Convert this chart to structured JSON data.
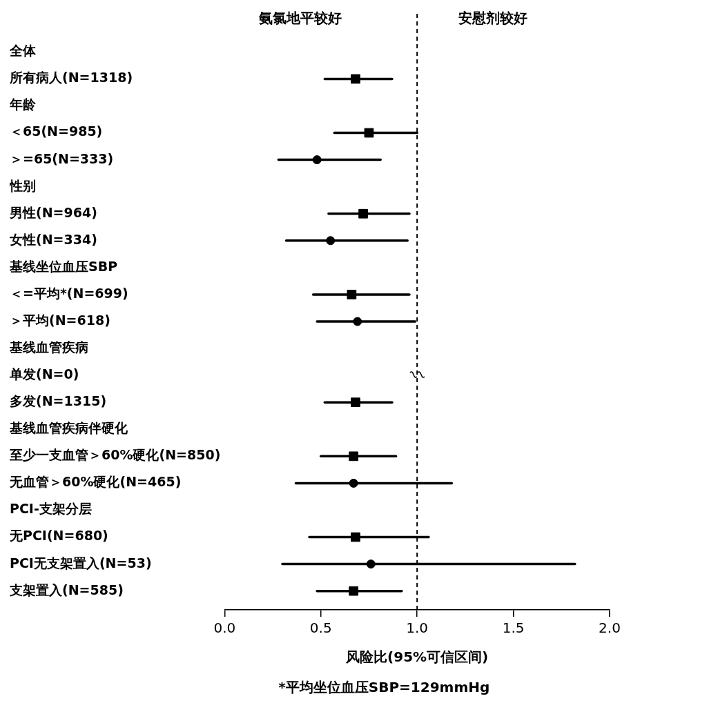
{
  "chart_data": {
    "type": "scatter",
    "orientation": "horizontal",
    "categories": [
      "全体",
      "所有病人(N=1318)",
      "年龄",
      "＜65(N=985)",
      "＞=65(N=333)",
      "性别",
      "男性(N=964)",
      "女性(N=334)",
      "基线坐位血压SBP",
      "＜=平均*(N=699)",
      "＞平均(N=618)",
      "基线血管疾病",
      "单发(N=0)",
      "多发(N=1315)",
      "基线血管疾病伴硬化",
      "至少一支血管＞60%硬化(N=850)",
      "无血管＞60%硬化(N=465)",
      "PCI-支架分层",
      "无PCI(N=680)",
      "PCI无支架置入(N=53)",
      "支架置入(N=585)"
    ],
    "series": [
      {
        "marker": "square",
        "color": "#000000",
        "values": [
          null,
          0.68,
          null,
          0.75,
          null,
          null,
          0.72,
          null,
          null,
          0.66,
          null,
          null,
          null,
          0.68,
          null,
          0.67,
          null,
          null,
          0.68,
          null,
          0.67
        ],
        "errors": [
          null,
          [
            0.52,
            0.87
          ],
          null,
          [
            0.57,
            1.0
          ],
          null,
          null,
          [
            0.54,
            0.96
          ],
          null,
          null,
          [
            0.46,
            0.96
          ],
          null,
          null,
          null,
          [
            0.52,
            0.87
          ],
          null,
          [
            0.5,
            0.89
          ],
          null,
          null,
          [
            0.44,
            1.06
          ],
          null,
          [
            0.48,
            0.92
          ]
        ]
      },
      {
        "marker": "circle",
        "color": "#000000",
        "values": [
          null,
          null,
          null,
          null,
          0.48,
          null,
          null,
          0.55,
          null,
          null,
          0.69,
          null,
          null,
          null,
          null,
          null,
          0.67,
          null,
          null,
          0.76,
          null
        ],
        "errors": [
          null,
          null,
          null,
          null,
          [
            0.28,
            0.81
          ],
          null,
          null,
          [
            0.32,
            0.95
          ],
          null,
          null,
          [
            0.48,
            0.99
          ],
          null,
          null,
          null,
          null,
          null,
          [
            0.37,
            1.18
          ],
          null,
          null,
          [
            0.3,
            1.82
          ],
          null
        ]
      }
    ],
    "xlim": [
      0,
      2
    ],
    "xticks": [
      {
        "value": 0,
        "label": "0.0"
      },
      {
        "value": 0.5,
        "label": "0.5"
      },
      {
        "value": 1,
        "label": "1.0"
      },
      {
        "value": 1.5,
        "label": "1.5"
      },
      {
        "value": 2,
        "label": "2.0"
      }
    ],
    "xlabel": "风险比(95%可信区间)",
    "ref_lines": [
      {
        "axis": "x",
        "value": 1,
        "line_style": "dashed",
        "color": "#000000"
      }
    ],
    "annotations": [
      "氨氯地平较好",
      "安慰剂较好",
      "*平均坐位血压SBP=129mmHg"
    ],
    "grid": false,
    "legend": false
  }
}
